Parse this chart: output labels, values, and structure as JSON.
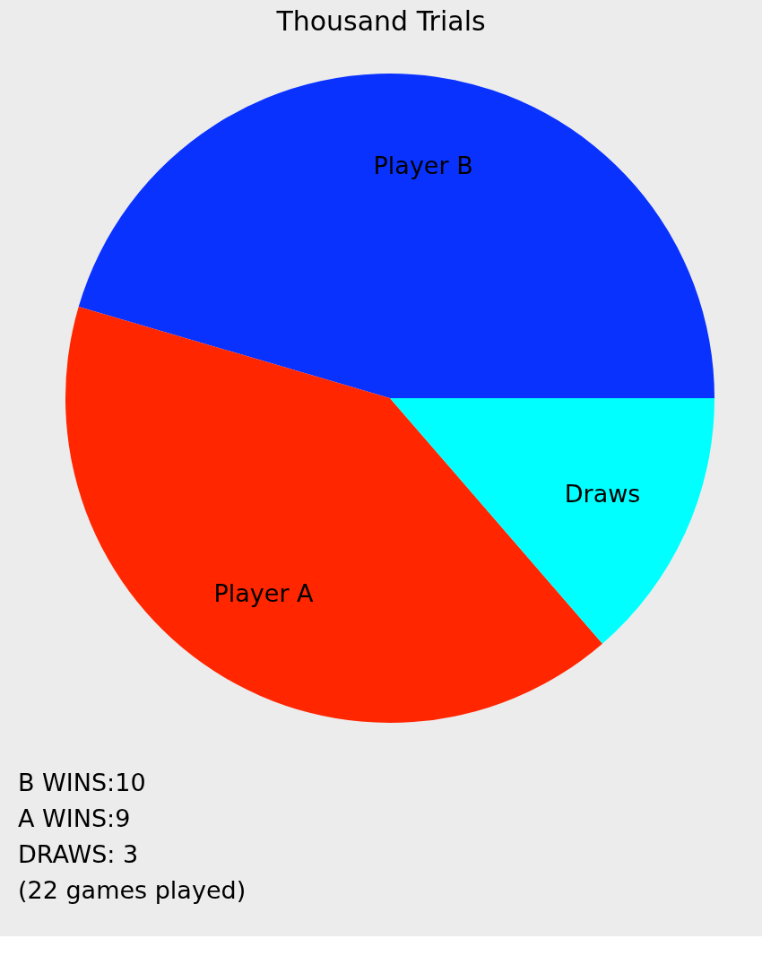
{
  "chart_data": {
    "type": "pie",
    "title": "Thousand Trials",
    "categories": [
      "Player B",
      "Player A",
      "Draws"
    ],
    "values": [
      45.45,
      40.91,
      13.64
    ],
    "colors": [
      "#0a32ff",
      "#ff2600",
      "#00ffff"
    ],
    "legend": false,
    "annotations": [
      "B WINS:10",
      "A WINS:9",
      "DRAWS: 3",
      "(22 games played)"
    ]
  }
}
